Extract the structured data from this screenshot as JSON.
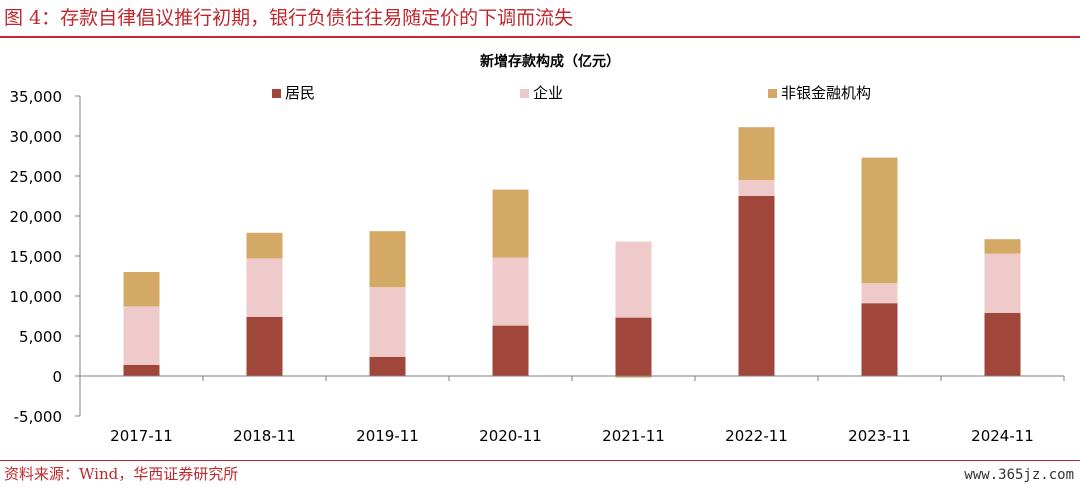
{
  "figure": {
    "title": "图 4：存款自律倡议推行初期，银行负债往往易随定价的下调而流失",
    "source": "资料来源：Wind，华西证券研究所",
    "watermark": "www.365jz.com"
  },
  "chart_data": {
    "type": "bar",
    "stacked": true,
    "title": "新增存款构成（亿元）",
    "xlabel": "",
    "ylabel": "",
    "ylim": [
      -5000,
      35000
    ],
    "yticks": [
      -5000,
      0,
      5000,
      10000,
      15000,
      20000,
      25000,
      30000,
      35000
    ],
    "ytick_labels": [
      "-5,000",
      "0",
      "5,000",
      "10,000",
      "15,000",
      "20,000",
      "25,000",
      "30,000",
      "35,000"
    ],
    "categories": [
      "2017-11",
      "2018-11",
      "2019-11",
      "2020-11",
      "2021-11",
      "2022-11",
      "2023-11",
      "2024-11"
    ],
    "series": [
      {
        "name": "居民",
        "color": "#a0463a",
        "values": [
          1400,
          7400,
          2400,
          6300,
          7300,
          22500,
          9100,
          7900
        ]
      },
      {
        "name": "企业",
        "color": "#efcaca",
        "values": [
          7300,
          7300,
          8700,
          8500,
          9500,
          2000,
          2500,
          7400
        ]
      },
      {
        "name": "非银金融机构",
        "color": "#d4a865",
        "values": [
          4300,
          3200,
          7000,
          8500,
          -200,
          6600,
          15700,
          1800
        ]
      }
    ],
    "legend_position": "top",
    "grid": false
  }
}
